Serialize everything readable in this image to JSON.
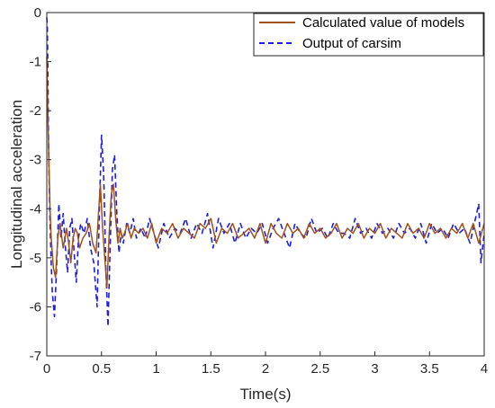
{
  "chart_data": {
    "type": "line",
    "title": "",
    "xlabel": "Time(s)",
    "ylabel": "Longitudinal acceleration",
    "xlim": [
      0,
      4
    ],
    "ylim": [
      -7,
      0
    ],
    "xticks": [
      0,
      0.5,
      1,
      1.5,
      2,
      2.5,
      3,
      3.5,
      4
    ],
    "xtick_labels": [
      "0",
      "0.5",
      "1",
      "1.5",
      "2",
      "2.5",
      "3",
      "3.5",
      "4"
    ],
    "yticks": [
      0,
      -1,
      -2,
      -3,
      -4,
      -5,
      -6,
      -7
    ],
    "ytick_labels": [
      "0",
      "-1",
      "-2",
      "-3",
      "-4",
      "-5",
      "-6",
      "-7"
    ],
    "grid": false,
    "legend_position": "top-right",
    "series": [
      {
        "name": "Calculated value of models",
        "color": "#a0521a",
        "style": "solid",
        "x": [
          0.0,
          0.01,
          0.02,
          0.03,
          0.04,
          0.06,
          0.08,
          0.1,
          0.12,
          0.15,
          0.18,
          0.2,
          0.22,
          0.24,
          0.26,
          0.28,
          0.3,
          0.33,
          0.36,
          0.39,
          0.42,
          0.45,
          0.47,
          0.49,
          0.51,
          0.53,
          0.55,
          0.57,
          0.59,
          0.61,
          0.63,
          0.65,
          0.67,
          0.69,
          0.71,
          0.74,
          0.77,
          0.8,
          0.84,
          0.88,
          0.92,
          0.96,
          1.0,
          1.05,
          1.1,
          1.15,
          1.2,
          1.25,
          1.3,
          1.35,
          1.4,
          1.45,
          1.5,
          1.55,
          1.6,
          1.65,
          1.7,
          1.75,
          1.8,
          1.85,
          1.9,
          1.95,
          2.0,
          2.05,
          2.1,
          2.15,
          2.2,
          2.25,
          2.3,
          2.35,
          2.4,
          2.45,
          2.5,
          2.55,
          2.6,
          2.65,
          2.7,
          2.75,
          2.8,
          2.85,
          2.9,
          2.95,
          3.0,
          3.05,
          3.1,
          3.15,
          3.2,
          3.25,
          3.3,
          3.35,
          3.4,
          3.45,
          3.5,
          3.55,
          3.6,
          3.65,
          3.7,
          3.75,
          3.8,
          3.85,
          3.9,
          3.95,
          4.0
        ],
        "y": [
          -0.9,
          -2.1,
          -3.1,
          -4.0,
          -4.6,
          -5.2,
          -5.4,
          -4.6,
          -4.3,
          -4.8,
          -4.4,
          -4.7,
          -5.1,
          -4.6,
          -4.4,
          -4.5,
          -4.8,
          -4.6,
          -4.5,
          -4.3,
          -4.7,
          -4.9,
          -4.2,
          -3.5,
          -4.4,
          -5.0,
          -5.6,
          -4.5,
          -3.7,
          -3.5,
          -4.2,
          -4.7,
          -4.4,
          -4.6,
          -4.5,
          -4.3,
          -4.6,
          -4.4,
          -4.5,
          -4.4,
          -4.6,
          -4.3,
          -4.7,
          -4.4,
          -4.5,
          -4.3,
          -4.6,
          -4.4,
          -4.5,
          -4.6,
          -4.3,
          -4.4,
          -4.2,
          -4.7,
          -4.4,
          -4.5,
          -4.3,
          -4.6,
          -4.5,
          -4.4,
          -4.6,
          -4.3,
          -4.7,
          -4.3,
          -4.5,
          -4.6,
          -4.3,
          -4.5,
          -4.4,
          -4.6,
          -4.3,
          -4.5,
          -4.4,
          -4.6,
          -4.5,
          -4.3,
          -4.6,
          -4.4,
          -4.5,
          -4.3,
          -4.6,
          -4.4,
          -4.5,
          -4.3,
          -4.6,
          -4.4,
          -4.5,
          -4.6,
          -4.3,
          -4.5,
          -4.4,
          -4.6,
          -4.3,
          -4.5,
          -4.4,
          -4.6,
          -4.4,
          -4.5,
          -4.3,
          -4.6,
          -4.3,
          -4.7,
          -4.3
        ]
      },
      {
        "name": "Output of carsim",
        "color": "#1f1fd6",
        "style": "dashed",
        "x": [
          0.0,
          0.005,
          0.01,
          0.015,
          0.02,
          0.03,
          0.04,
          0.05,
          0.07,
          0.09,
          0.11,
          0.13,
          0.15,
          0.17,
          0.19,
          0.21,
          0.23,
          0.25,
          0.27,
          0.29,
          0.31,
          0.34,
          0.37,
          0.4,
          0.43,
          0.46,
          0.48,
          0.5,
          0.52,
          0.54,
          0.56,
          0.58,
          0.6,
          0.62,
          0.64,
          0.66,
          0.68,
          0.7,
          0.73,
          0.76,
          0.79,
          0.82,
          0.86,
          0.9,
          0.94,
          0.98,
          1.02,
          1.07,
          1.12,
          1.17,
          1.22,
          1.27,
          1.32,
          1.37,
          1.42,
          1.47,
          1.52,
          1.57,
          1.62,
          1.67,
          1.72,
          1.77,
          1.82,
          1.87,
          1.92,
          1.97,
          2.02,
          2.07,
          2.12,
          2.17,
          2.22,
          2.27,
          2.32,
          2.37,
          2.42,
          2.47,
          2.52,
          2.57,
          2.62,
          2.67,
          2.72,
          2.77,
          2.82,
          2.87,
          2.92,
          2.97,
          3.02,
          3.07,
          3.12,
          3.17,
          3.22,
          3.27,
          3.32,
          3.37,
          3.42,
          3.47,
          3.52,
          3.57,
          3.62,
          3.67,
          3.72,
          3.77,
          3.82,
          3.87,
          3.92,
          3.95,
          3.97,
          4.0
        ],
        "y": [
          -0.1,
          -0.3,
          -1.2,
          -2.4,
          -3.2,
          -4.3,
          -5.1,
          -5.7,
          -6.2,
          -5.2,
          -3.9,
          -4.6,
          -4.1,
          -4.8,
          -5.3,
          -4.4,
          -4.2,
          -4.9,
          -5.5,
          -4.6,
          -4.3,
          -4.5,
          -4.2,
          -4.8,
          -5.1,
          -6.0,
          -4.1,
          -2.5,
          -3.3,
          -5.2,
          -6.4,
          -4.7,
          -3.2,
          -2.9,
          -4.1,
          -4.9,
          -4.5,
          -4.7,
          -4.3,
          -4.5,
          -4.2,
          -4.6,
          -4.4,
          -4.6,
          -4.2,
          -4.5,
          -4.8,
          -4.3,
          -4.6,
          -4.4,
          -4.5,
          -4.2,
          -4.6,
          -4.3,
          -4.5,
          -4.1,
          -4.8,
          -4.2,
          -4.5,
          -4.3,
          -4.7,
          -4.3,
          -4.6,
          -4.4,
          -4.5,
          -4.3,
          -4.7,
          -4.4,
          -4.2,
          -4.5,
          -4.8,
          -4.3,
          -4.5,
          -4.6,
          -4.2,
          -4.5,
          -4.4,
          -4.6,
          -4.3,
          -4.5,
          -4.5,
          -4.6,
          -4.2,
          -4.5,
          -4.4,
          -4.6,
          -4.3,
          -4.5,
          -4.4,
          -4.6,
          -4.3,
          -4.5,
          -4.4,
          -4.6,
          -4.3,
          -4.7,
          -4.3,
          -4.5,
          -4.4,
          -4.6,
          -4.3,
          -4.5,
          -4.4,
          -4.7,
          -4.2,
          -3.9,
          -5.1,
          -4.5
        ]
      }
    ]
  }
}
